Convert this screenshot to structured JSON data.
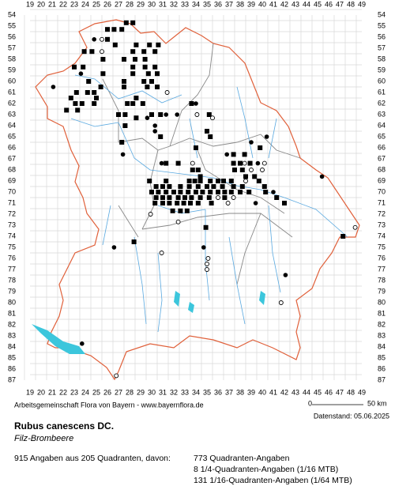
{
  "map": {
    "columns": [
      19,
      20,
      21,
      22,
      23,
      24,
      25,
      26,
      27,
      28,
      29,
      30,
      31,
      32,
      33,
      34,
      35,
      36,
      37,
      38,
      39,
      40,
      41,
      42,
      43,
      44,
      45,
      46,
      47,
      48,
      49
    ],
    "rows": [
      54,
      55,
      56,
      57,
      58,
      59,
      60,
      61,
      62,
      63,
      64,
      65,
      66,
      67,
      68,
      69,
      70,
      71,
      72,
      73,
      74,
      75,
      76,
      77,
      78,
      79,
      80,
      81,
      82,
      83,
      84,
      85,
      86,
      87
    ],
    "points": {
      "squares": [
        [
          27.7,
          54.7
        ],
        [
          28.3,
          54.7
        ],
        [
          26,
          55.3
        ],
        [
          26.6,
          55.3
        ],
        [
          27.3,
          55.3
        ],
        [
          26,
          56.2
        ],
        [
          26.7,
          56.7
        ],
        [
          28.6,
          56.7
        ],
        [
          29.8,
          56.7
        ],
        [
          30.6,
          56.7
        ],
        [
          23.9,
          57.3
        ],
        [
          24.6,
          57.3
        ],
        [
          28.3,
          57.3
        ],
        [
          29.3,
          57.3
        ],
        [
          30.3,
          57.3
        ],
        [
          25.6,
          58
        ],
        [
          27.5,
          58
        ],
        [
          28.5,
          58
        ],
        [
          29.4,
          58
        ],
        [
          23,
          58.7
        ],
        [
          23.8,
          58.7
        ],
        [
          28.3,
          58.7
        ],
        [
          29.4,
          58.7
        ],
        [
          30.3,
          58.7
        ],
        [
          25.6,
          59.3
        ],
        [
          28.3,
          59.3
        ],
        [
          29.7,
          59.3
        ],
        [
          30.5,
          59.3
        ],
        [
          24.3,
          60
        ],
        [
          27.5,
          60
        ],
        [
          29.3,
          60
        ],
        [
          30,
          60
        ],
        [
          25.4,
          60.5
        ],
        [
          27.5,
          60.5
        ],
        [
          29.6,
          60.5
        ],
        [
          30.5,
          60.5
        ],
        [
          23.2,
          61
        ],
        [
          24.2,
          61
        ],
        [
          24.8,
          61
        ],
        [
          22.7,
          61.5
        ],
        [
          25,
          61.5
        ],
        [
          28.6,
          61.5
        ],
        [
          23.1,
          62
        ],
        [
          23.7,
          62
        ],
        [
          24.8,
          62
        ],
        [
          27.8,
          62
        ],
        [
          28.3,
          62
        ],
        [
          29.2,
          62
        ],
        [
          33.6,
          62
        ],
        [
          22.3,
          62.6
        ],
        [
          23.3,
          62.6
        ],
        [
          27,
          63
        ],
        [
          27.6,
          63
        ],
        [
          30,
          63
        ],
        [
          30.8,
          63
        ],
        [
          35.2,
          63
        ],
        [
          28.6,
          63.3
        ],
        [
          27.6,
          64
        ],
        [
          35,
          64.5
        ],
        [
          30.8,
          65
        ],
        [
          35.3,
          65
        ],
        [
          27.3,
          65.5
        ],
        [
          34,
          66
        ],
        [
          39.8,
          66
        ],
        [
          37.4,
          66.6
        ],
        [
          38.4,
          66.6
        ],
        [
          31.3,
          67.4
        ],
        [
          32.4,
          67.4
        ],
        [
          37.4,
          67.4
        ],
        [
          38,
          67.4
        ],
        [
          38.9,
          67.4
        ],
        [
          33.7,
          68
        ],
        [
          34.2,
          68
        ],
        [
          37.5,
          68
        ],
        [
          38.2,
          68
        ],
        [
          34.4,
          68.6
        ],
        [
          38.5,
          68.6
        ],
        [
          39.3,
          68.6
        ],
        [
          29.8,
          69
        ],
        [
          31.3,
          69
        ],
        [
          33.4,
          69
        ],
        [
          33.9,
          69
        ],
        [
          34.4,
          69
        ],
        [
          35.3,
          69
        ],
        [
          36,
          69
        ],
        [
          36.5,
          69
        ],
        [
          37.2,
          69
        ],
        [
          39.7,
          69
        ],
        [
          30.4,
          69.5
        ],
        [
          31,
          69.5
        ],
        [
          31.6,
          69.5
        ],
        [
          32.6,
          69.5
        ],
        [
          33.4,
          69.5
        ],
        [
          34.2,
          69.5
        ],
        [
          35,
          69.5
        ],
        [
          35.6,
          69.5
        ],
        [
          36.4,
          69.5
        ],
        [
          37.4,
          69.5
        ],
        [
          38.2,
          69.5
        ],
        [
          40.2,
          69.5
        ],
        [
          30,
          70
        ],
        [
          30.6,
          70
        ],
        [
          31.3,
          70
        ],
        [
          32,
          70
        ],
        [
          32.6,
          70
        ],
        [
          33.3,
          70
        ],
        [
          34,
          70
        ],
        [
          34.6,
          70
        ],
        [
          35.3,
          70
        ],
        [
          36,
          70
        ],
        [
          36.6,
          70
        ],
        [
          37.2,
          70
        ],
        [
          38,
          70
        ],
        [
          38.8,
          70
        ],
        [
          40.3,
          70
        ],
        [
          30.4,
          70.5
        ],
        [
          31,
          70.5
        ],
        [
          31.6,
          70.5
        ],
        [
          32.4,
          70.5
        ],
        [
          33,
          70.5
        ],
        [
          33.6,
          70.5
        ],
        [
          34.4,
          70.5
        ],
        [
          35.2,
          70.5
        ],
        [
          36.6,
          70.5
        ],
        [
          41.3,
          70.5
        ],
        [
          30.3,
          71
        ],
        [
          31,
          71
        ],
        [
          31.6,
          71
        ],
        [
          32.3,
          71
        ],
        [
          32.9,
          71
        ],
        [
          33.5,
          71
        ],
        [
          34.2,
          71
        ],
        [
          35.4,
          71
        ],
        [
          42,
          71
        ],
        [
          31.9,
          71.7
        ],
        [
          32.6,
          71.7
        ],
        [
          33.2,
          71.7
        ],
        [
          34.9,
          73.2
        ],
        [
          47.3,
          74
        ],
        [
          28.4,
          74.5
        ]
      ],
      "dots": [
        [
          24.8,
          56.2
        ],
        [
          23.6,
          59.3
        ],
        [
          21.1,
          60.5
        ],
        [
          34,
          62
        ],
        [
          31.3,
          63
        ],
        [
          32.3,
          63
        ],
        [
          29.6,
          63.3
        ],
        [
          30.3,
          64
        ],
        [
          30.3,
          64.5
        ],
        [
          40.4,
          65
        ],
        [
          39,
          65.5
        ],
        [
          27.4,
          66.6
        ],
        [
          36.8,
          66.6
        ],
        [
          30.9,
          67.4
        ],
        [
          39.6,
          67.4
        ],
        [
          45.4,
          68.6
        ],
        [
          41,
          70
        ],
        [
          39.4,
          71
        ],
        [
          26.6,
          75
        ],
        [
          34.7,
          75
        ],
        [
          42.1,
          77.5
        ],
        [
          23.7,
          83.7
        ]
      ],
      "circles": [
        [
          25.5,
          56.2
        ],
        [
          25.5,
          57.3
        ],
        [
          31.4,
          61
        ],
        [
          34.1,
          63
        ],
        [
          35.5,
          63.3
        ],
        [
          38.4,
          67.4
        ],
        [
          40.2,
          67.4
        ],
        [
          33.7,
          67.4
        ],
        [
          39,
          68
        ],
        [
          40,
          68
        ],
        [
          38.5,
          69
        ],
        [
          36,
          70.5
        ],
        [
          37.4,
          70.5
        ],
        [
          36.9,
          71
        ],
        [
          29.9,
          72
        ],
        [
          32.4,
          72.7
        ],
        [
          48.4,
          73.2
        ],
        [
          30.9,
          75.5
        ],
        [
          35.1,
          76
        ],
        [
          35,
          76.5
        ],
        [
          35,
          77
        ],
        [
          41.7,
          80
        ],
        [
          26.8,
          86.6
        ]
      ]
    },
    "credit": "Arbeitsgemeinschaft Flora von Bayern - www.bayernflora.de",
    "scale_start": "0",
    "scale_end": "50 km",
    "date": "Datenstand: 05.06.2025",
    "species": "Rubus canescens DC.",
    "common_name": "Filz-Brombeere",
    "stats": [
      "915 Angaben aus 205 Quadranten, davon:",
      "773 Quadranten-Angaben",
      "8 1/4-Quadranten-Angaben (1/16 MTB)",
      "131 1/16-Quadranten-Angaben (1/64 MTB)"
    ]
  }
}
